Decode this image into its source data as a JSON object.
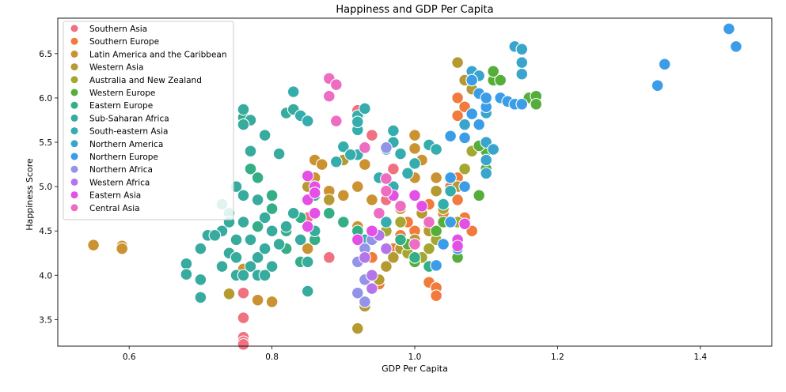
{
  "chart_data": {
    "type": "scatter",
    "title": "Happiness and GDP Per Capita",
    "xlabel": "GDP Per Capita",
    "ylabel": "Happiness Score",
    "xlim": [
      0.5,
      1.5
    ],
    "ylim": [
      3.2,
      6.9
    ],
    "xticks": [
      0.6,
      0.8,
      1.0,
      1.2,
      1.4
    ],
    "yticks": [
      3.5,
      4.0,
      4.5,
      5.0,
      5.5,
      6.0,
      6.5
    ],
    "grid": false,
    "legend_position": "top-left",
    "series": [
      {
        "name": "Southern Asia",
        "color": "#f0717f",
        "points": [
          [
            0.76,
            3.52
          ],
          [
            0.76,
            3.8
          ],
          [
            0.76,
            3.3
          ],
          [
            0.76,
            3.25
          ],
          [
            0.76,
            3.22
          ],
          [
            0.88,
            4.2
          ],
          [
            0.92,
            5.86
          ],
          [
            0.94,
            5.58
          ],
          [
            0.96,
            4.85
          ],
          [
            0.97,
            5.2
          ],
          [
            0.85,
            4.65
          ]
        ]
      },
      {
        "name": "Southern Europe",
        "color": "#f07b3c",
        "points": [
          [
            1.02,
            3.92
          ],
          [
            1.03,
            3.86
          ],
          [
            1.03,
            3.77
          ],
          [
            1.06,
            5.8
          ],
          [
            1.06,
            6.0
          ],
          [
            1.07,
            5.9
          ],
          [
            1.05,
            5.0
          ],
          [
            1.06,
            4.85
          ],
          [
            1.04,
            4.7
          ],
          [
            1.08,
            4.5
          ],
          [
            1.0,
            4.5
          ],
          [
            0.98,
            4.45
          ],
          [
            0.94,
            4.2
          ],
          [
            0.95,
            3.9
          ],
          [
            1.05,
            4.95
          ],
          [
            1.06,
            5.1
          ],
          [
            1.07,
            4.65
          ],
          [
            0.97,
            4.3
          ],
          [
            0.99,
            4.6
          ],
          [
            1.02,
            4.8
          ]
        ]
      },
      {
        "name": "Latin America and the Caribbean",
        "color": "#ca9231",
        "points": [
          [
            0.55,
            4.34
          ],
          [
            0.59,
            4.33
          ],
          [
            0.59,
            4.3
          ],
          [
            0.76,
            4.07
          ],
          [
            0.78,
            3.72
          ],
          [
            0.8,
            3.7
          ],
          [
            0.86,
            5.3
          ],
          [
            0.87,
            5.25
          ],
          [
            0.92,
            5.0
          ],
          [
            0.93,
            5.25
          ],
          [
            0.95,
            4.7
          ],
          [
            1.0,
            5.58
          ],
          [
            1.0,
            5.43
          ],
          [
            1.01,
            5.3
          ],
          [
            1.03,
            5.1
          ],
          [
            0.88,
            4.95
          ],
          [
            0.92,
            4.55
          ],
          [
            0.98,
            4.75
          ],
          [
            0.94,
            4.85
          ],
          [
            0.9,
            4.9
          ],
          [
            0.85,
            4.3
          ],
          [
            0.86,
            5.1
          ],
          [
            0.96,
            5.1
          ],
          [
            1.0,
            5.1
          ],
          [
            1.02,
            4.55
          ]
        ]
      },
      {
        "name": "Western Asia",
        "color": "#b49a31",
        "points": [
          [
            0.92,
            3.4
          ],
          [
            0.93,
            3.65
          ],
          [
            0.74,
            3.79
          ],
          [
            1.06,
            6.4
          ],
          [
            1.07,
            6.2
          ],
          [
            1.08,
            6.1
          ],
          [
            0.94,
            4.4
          ],
          [
            0.96,
            4.1
          ],
          [
            0.98,
            4.3
          ],
          [
            1.0,
            4.4
          ],
          [
            1.02,
            4.5
          ],
          [
            1.04,
            4.8
          ],
          [
            1.06,
            5.0
          ],
          [
            0.88,
            4.85
          ],
          [
            0.9,
            5.3
          ],
          [
            0.85,
            5.0
          ],
          [
            0.95,
            3.95
          ],
          [
            0.97,
            4.2
          ],
          [
            1.01,
            4.7
          ],
          [
            1.03,
            4.95
          ]
        ]
      },
      {
        "name": "Australia and New Zealand",
        "color": "#a4a730",
        "points": [
          [
            1.02,
            4.3
          ],
          [
            1.03,
            4.4
          ],
          [
            1.01,
            4.2
          ],
          [
            0.99,
            4.25
          ],
          [
            1.06,
            4.6
          ],
          [
            1.04,
            4.75
          ],
          [
            1.07,
            5.2
          ],
          [
            1.08,
            5.4
          ],
          [
            0.96,
            4.5
          ],
          [
            0.98,
            4.6
          ]
        ]
      },
      {
        "name": "Western Europe",
        "color": "#55ae3a",
        "points": [
          [
            1.09,
            4.9
          ],
          [
            1.1,
            5.2
          ],
          [
            1.1,
            5.4
          ],
          [
            1.11,
            6.2
          ],
          [
            1.12,
            6.2
          ],
          [
            1.16,
            6.0
          ],
          [
            1.17,
            6.02
          ],
          [
            1.17,
            5.93
          ],
          [
            1.03,
            4.5
          ],
          [
            1.04,
            4.6
          ],
          [
            1.0,
            4.15
          ],
          [
            0.99,
            4.35
          ],
          [
            1.02,
            4.6
          ],
          [
            1.06,
            4.2
          ],
          [
            1.09,
            5.46
          ],
          [
            1.11,
            6.3
          ]
        ]
      },
      {
        "name": "Eastern Europe",
        "color": "#34ae86",
        "points": [
          [
            0.76,
            5.78
          ],
          [
            0.77,
            5.2
          ],
          [
            0.78,
            5.1
          ],
          [
            0.8,
            4.75
          ],
          [
            0.82,
            4.5
          ],
          [
            0.84,
            4.65
          ],
          [
            0.86,
            4.9
          ],
          [
            0.88,
            4.7
          ],
          [
            0.9,
            4.6
          ],
          [
            0.92,
            4.5
          ],
          [
            0.94,
            4.4
          ],
          [
            0.96,
            4.3
          ],
          [
            0.98,
            4.4
          ],
          [
            1.0,
            4.2
          ],
          [
            1.02,
            4.1
          ],
          [
            0.82,
            4.3
          ],
          [
            0.84,
            4.15
          ],
          [
            0.86,
            4.4
          ],
          [
            0.78,
            4.55
          ],
          [
            0.8,
            4.9
          ]
        ]
      },
      {
        "name": "Sub-Saharan Africa",
        "color": "#37ab9e",
        "points": [
          [
            0.68,
            4.13
          ],
          [
            0.68,
            4.01
          ],
          [
            0.7,
            3.75
          ],
          [
            0.7,
            3.95
          ],
          [
            0.7,
            4.3
          ],
          [
            0.71,
            4.45
          ],
          [
            0.73,
            4.5
          ],
          [
            0.74,
            4.25
          ],
          [
            0.75,
            4.4
          ],
          [
            0.75,
            4.0
          ],
          [
            0.76,
            4.6
          ],
          [
            0.77,
            4.4
          ],
          [
            0.77,
            4.1
          ],
          [
            0.78,
            4.2
          ],
          [
            0.78,
            4.0
          ],
          [
            0.79,
            4.3
          ],
          [
            0.8,
            4.5
          ],
          [
            0.8,
            4.1
          ],
          [
            0.81,
            4.35
          ],
          [
            0.82,
            4.55
          ],
          [
            0.83,
            4.7
          ],
          [
            0.84,
            4.4
          ],
          [
            0.85,
            4.15
          ],
          [
            0.85,
            3.82
          ],
          [
            0.86,
            4.5
          ],
          [
            0.76,
            5.87
          ],
          [
            0.77,
            5.75
          ],
          [
            0.76,
            5.7
          ],
          [
            0.79,
            5.58
          ],
          [
            0.82,
            5.83
          ],
          [
            0.83,
            5.87
          ],
          [
            0.77,
            5.4
          ],
          [
            0.81,
            5.37
          ],
          [
            0.73,
            4.8
          ],
          [
            0.74,
            4.7
          ],
          [
            0.75,
            5.0
          ],
          [
            0.76,
            4.9
          ],
          [
            0.78,
            4.85
          ],
          [
            0.79,
            4.65
          ],
          [
            0.72,
            4.45
          ],
          [
            0.74,
            4.6
          ],
          [
            0.75,
            4.2
          ],
          [
            0.73,
            4.1
          ],
          [
            0.76,
            4.0
          ],
          [
            0.79,
            4.0
          ]
        ]
      },
      {
        "name": "South-eastern Asia",
        "color": "#36adad",
        "points": [
          [
            0.83,
            6.07
          ],
          [
            0.84,
            5.8
          ],
          [
            0.85,
            5.74
          ],
          [
            0.92,
            5.8
          ],
          [
            0.92,
            5.64
          ],
          [
            0.93,
            5.88
          ],
          [
            0.92,
            5.73
          ],
          [
            0.96,
            5.42
          ],
          [
            0.97,
            5.63
          ],
          [
            0.97,
            5.5
          ],
          [
            0.98,
            5.37
          ],
          [
            1.0,
            5.26
          ],
          [
            1.02,
            5.47
          ],
          [
            1.03,
            5.42
          ],
          [
            0.9,
            5.45
          ],
          [
            0.92,
            5.36
          ],
          [
            0.95,
            5.1
          ],
          [
            0.97,
            5.0
          ],
          [
            0.99,
            5.15
          ],
          [
            0.89,
            5.28
          ],
          [
            0.91,
            5.36
          ],
          [
            1.04,
            4.8
          ],
          [
            1.05,
            4.95
          ],
          [
            0.93,
            4.4
          ],
          [
            0.96,
            4.6
          ]
        ]
      },
      {
        "name": "Northern America",
        "color": "#3aa5cc",
        "points": [
          [
            1.08,
            6.3
          ],
          [
            1.09,
            6.25
          ],
          [
            1.1,
            5.5
          ],
          [
            1.1,
            5.3
          ],
          [
            1.1,
            5.15
          ],
          [
            1.11,
            5.42
          ],
          [
            1.14,
            6.58
          ],
          [
            1.15,
            6.55
          ],
          [
            1.15,
            6.4
          ],
          [
            1.15,
            6.27
          ],
          [
            1.1,
            5.83
          ],
          [
            1.07,
            5.7
          ]
        ]
      },
      {
        "name": "Northern Europe",
        "color": "#3b9de7",
        "points": [
          [
            1.44,
            6.78
          ],
          [
            1.45,
            6.58
          ],
          [
            1.35,
            6.38
          ],
          [
            1.34,
            6.14
          ],
          [
            1.12,
            6.0
          ],
          [
            1.13,
            5.96
          ],
          [
            1.14,
            5.93
          ],
          [
            1.15,
            5.93
          ],
          [
            1.09,
            6.05
          ],
          [
            1.08,
            5.82
          ],
          [
            1.09,
            5.7
          ],
          [
            1.1,
            5.9
          ],
          [
            1.1,
            6.0
          ],
          [
            1.08,
            6.2
          ],
          [
            1.07,
            5.55
          ],
          [
            1.05,
            5.57
          ],
          [
            1.06,
            4.3
          ],
          [
            1.05,
            5.1
          ],
          [
            1.07,
            5.0
          ],
          [
            1.08,
            6.2
          ],
          [
            1.03,
            4.11
          ],
          [
            1.04,
            4.35
          ],
          [
            1.05,
            4.6
          ]
        ]
      },
      {
        "name": "Northern Africa",
        "color": "#9393ea",
        "points": [
          [
            0.92,
            4.15
          ],
          [
            0.93,
            3.95
          ],
          [
            0.93,
            3.7
          ],
          [
            0.96,
            5.44
          ],
          [
            0.93,
            4.3
          ],
          [
            0.92,
            3.8
          ],
          [
            0.94,
            4.4
          ]
        ]
      },
      {
        "name": "Western Africa",
        "color": "#b575ea",
        "points": [
          [
            0.93,
            4.2
          ],
          [
            0.94,
            4.0
          ],
          [
            0.95,
            4.45
          ],
          [
            0.96,
            4.3
          ],
          [
            0.94,
            3.85
          ]
        ]
      },
      {
        "name": "Eastern Asia",
        "color": "#e44fe6",
        "points": [
          [
            0.85,
            5.12
          ],
          [
            0.86,
            5.0
          ],
          [
            0.85,
            4.85
          ],
          [
            0.86,
            4.7
          ],
          [
            0.85,
            4.55
          ],
          [
            0.97,
            4.9
          ],
          [
            1.0,
            4.9
          ],
          [
            1.01,
            4.78
          ],
          [
            1.06,
            4.4
          ],
          [
            1.06,
            4.33
          ],
          [
            1.07,
            4.58
          ],
          [
            0.92,
            4.4
          ],
          [
            0.94,
            4.5
          ],
          [
            0.86,
            4.93
          ]
        ]
      },
      {
        "name": "Central Asia",
        "color": "#ee6cc2",
        "points": [
          [
            0.88,
            6.22
          ],
          [
            0.89,
            6.15
          ],
          [
            0.88,
            6.02
          ],
          [
            0.89,
            5.74
          ],
          [
            0.93,
            5.44
          ],
          [
            0.96,
            5.09
          ],
          [
            0.95,
            4.7
          ],
          [
            0.96,
            4.95
          ],
          [
            0.98,
            4.78
          ],
          [
            1.02,
            4.6
          ],
          [
            1.0,
            4.35
          ]
        ]
      }
    ]
  }
}
